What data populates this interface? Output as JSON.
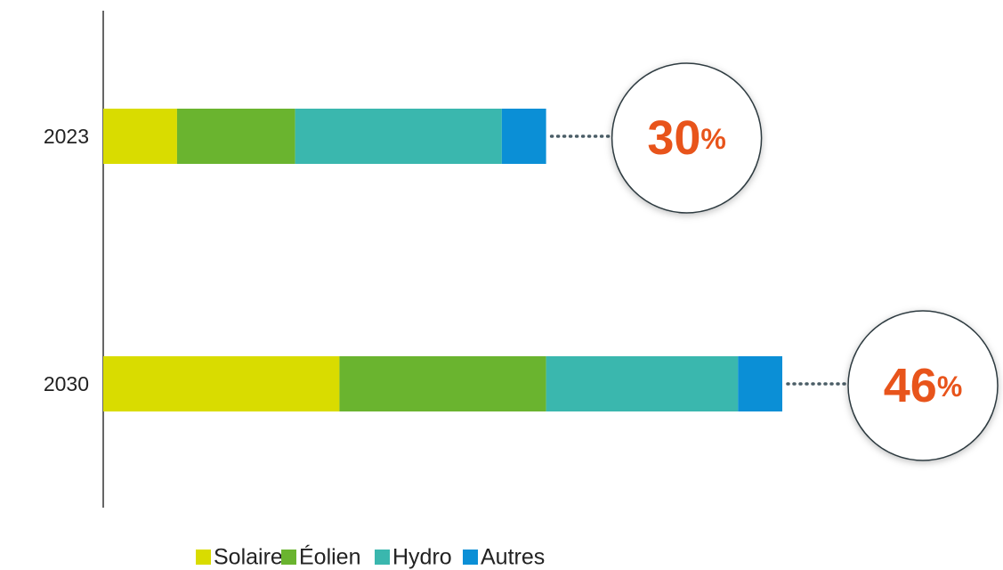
{
  "chart_data": {
    "type": "bar",
    "orientation": "horizontal",
    "stacked": true,
    "categories": [
      "2023",
      "2030"
    ],
    "series": [
      {
        "name": "Solaire",
        "color": "#d9dc00",
        "values": [
          5,
          16
        ]
      },
      {
        "name": "Éolien",
        "color": "#6ab42f",
        "values": [
          8,
          14
        ]
      },
      {
        "name": "Hydro",
        "color": "#3ab7ae",
        "values": [
          14,
          13
        ]
      },
      {
        "name": "Autres",
        "color": "#0b8fd6",
        "values": [
          3,
          3
        ]
      }
    ],
    "totals": [
      30,
      46
    ],
    "total_labels": [
      "30%",
      "46%"
    ],
    "total_color": "#e8541b",
    "legend": "bottom"
  }
}
